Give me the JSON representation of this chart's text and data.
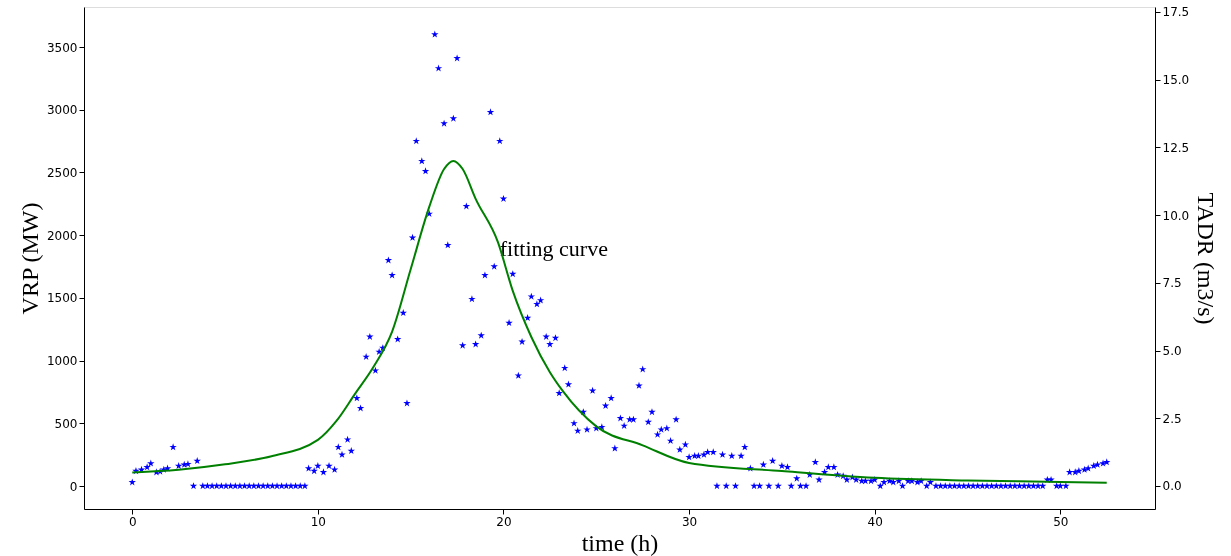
{
  "chart_data": {
    "type": "scatter",
    "xlabel": "time (h)",
    "ylabel": "VRP (MW)",
    "y2label": "TADR (m3/s)",
    "xlim": [
      -2.6,
      55.1
    ],
    "xticks": [
      0,
      10,
      20,
      30,
      40,
      50
    ],
    "ylim": [
      -183,
      3819
    ],
    "yticks": [
      0,
      500,
      1000,
      1500,
      2000,
      2500,
      3000,
      3500
    ],
    "y2lim": [
      -0.85,
      17.68
    ],
    "y2ticks": [
      {
        "value": 0,
        "label": "0.0"
      },
      2.5,
      {
        "value": 5,
        "label": "5.0"
      },
      7.5,
      {
        "value": 10,
        "label": "10.0"
      },
      12.5,
      {
        "value": 15,
        "label": "15.0"
      },
      17.5
    ],
    "grid": false,
    "marker": "star",
    "annotations": [
      {
        "text": "fitting curve",
        "x": 19.8,
        "y": 1890
      }
    ],
    "series": [
      {
        "color": "#0000ff",
        "x": [
          0,
          0.2,
          0.5,
          0.8,
          1.0,
          1.3,
          1.5,
          1.7,
          1.9,
          2.2,
          2.5,
          2.8,
          3.0,
          3.3,
          3.5,
          3.8,
          4.05,
          4.3,
          4.55,
          4.8,
          5.05,
          5.3,
          5.55,
          5.8,
          6.05,
          6.3,
          6.55,
          6.8,
          7.05,
          7.3,
          7.55,
          7.8,
          8.05,
          8.3,
          8.55,
          8.8,
          9.05,
          9.3,
          9.5,
          9.8,
          10.0,
          10.3,
          10.6,
          10.9,
          11.1,
          11.3,
          11.6,
          11.8,
          12.1,
          12.3,
          12.6,
          12.8,
          13.1,
          13.3,
          13.5,
          13.8,
          14.0,
          14.3,
          14.6,
          14.8,
          15.1,
          15.3,
          15.6,
          15.8,
          16.0,
          16.3,
          16.5,
          16.8,
          17.0,
          17.3,
          17.5,
          17.8,
          18.0,
          18.3,
          18.5,
          18.8,
          19.0,
          19.3,
          19.5,
          19.8,
          20.0,
          20.3,
          20.5,
          20.8,
          21.0,
          21.3,
          21.5,
          21.8,
          22.0,
          22.3,
          22.5,
          22.8,
          23.0,
          23.3,
          23.5,
          23.8,
          24.0,
          24.3,
          24.5,
          24.8,
          25.0,
          25.3,
          25.5,
          25.8,
          26.0,
          26.3,
          26.5,
          26.8,
          27.0,
          27.3,
          27.5,
          27.8,
          28.0,
          28.3,
          28.5,
          28.8,
          29.0,
          29.3,
          29.5,
          29.8,
          30.0,
          30.3,
          30.5,
          30.8,
          31.0,
          31.3,
          31.5,
          31.8,
          32.0,
          32.3,
          32.5,
          32.8,
          33.0,
          33.3,
          33.5,
          33.8,
          34.0,
          34.3,
          34.5,
          34.8,
          35.0,
          35.3,
          35.5,
          35.8,
          36.0,
          36.3,
          36.5,
          36.8,
          37.0,
          37.3,
          37.5,
          37.8,
          38.0,
          38.3,
          38.5,
          38.8,
          39.0,
          39.3,
          39.5,
          39.8,
          40.0,
          40.3,
          40.5,
          40.8,
          41.0,
          41.3,
          41.5,
          41.8,
          42.0,
          42.3,
          42.5,
          42.8,
          43.0,
          43.3,
          43.55,
          43.8,
          44.05,
          44.3,
          44.55,
          44.8,
          45.05,
          45.3,
          45.55,
          45.8,
          46.05,
          46.3,
          46.55,
          46.8,
          47.05,
          47.3,
          47.55,
          47.8,
          48.05,
          48.3,
          48.55,
          48.8,
          49.05,
          49.3,
          49.5,
          49.8,
          50.0,
          50.3,
          50.5,
          50.8,
          51.0,
          51.3,
          51.5,
          51.8,
          52.0,
          52.3,
          52.5
        ],
        "values": [
          30,
          120,
          130,
          150,
          180,
          110,
          115,
          130,
          140,
          310,
          160,
          170,
          175,
          0,
          200,
          0,
          0,
          0,
          0,
          0,
          0,
          0,
          0,
          0,
          0,
          0,
          0,
          0,
          0,
          0,
          0,
          0,
          0,
          0,
          0,
          0,
          0,
          0,
          140,
          120,
          160,
          110,
          160,
          130,
          310,
          250,
          370,
          280,
          700,
          620,
          1030,
          1190,
          920,
          1070,
          1100,
          1800,
          1680,
          1170,
          1380,
          660,
          1980,
          2750,
          2590,
          2510,
          2170,
          3600,
          3330,
          2890,
          1920,
          2930,
          3410,
          1120,
          2230,
          1490,
          1130,
          1200,
          1680,
          2980,
          1750,
          2750,
          2290,
          1300,
          1690,
          880,
          1150,
          1340,
          1510,
          1450,
          1480,
          1190,
          1130,
          1180,
          740,
          940,
          810,
          500,
          440,
          590,
          450,
          760,
          460,
          470,
          640,
          700,
          300,
          540,
          480,
          530,
          530,
          800,
          930,
          510,
          590,
          410,
          450,
          460,
          360,
          530,
          290,
          330,
          230,
          240,
          240,
          250,
          270,
          270,
          0,
          250,
          0,
          240,
          0,
          240,
          310,
          140,
          0,
          0,
          170,
          0,
          200,
          0,
          160,
          150,
          0,
          60,
          0,
          0,
          90,
          190,
          50,
          110,
          150,
          150,
          90,
          80,
          50,
          70,
          50,
          40,
          40,
          40,
          50,
          0,
          30,
          40,
          30,
          40,
          0,
          40,
          40,
          30,
          40,
          0,
          30,
          0,
          0,
          0,
          0,
          0,
          0,
          0,
          0,
          0,
          0,
          0,
          0,
          0,
          0,
          0,
          0,
          0,
          0,
          0,
          0,
          0,
          0,
          0,
          0,
          50,
          50,
          0,
          0,
          0,
          110,
          110,
          120,
          130,
          140,
          160,
          170,
          180,
          190
        ]
      },
      {
        "type": "line",
        "color": "#008000",
        "axis": "y2",
        "line_style": "solid",
        "marker": "none",
        "x": [
          0,
          2.5,
          5,
          7.5,
          10,
          11,
          12,
          13,
          14,
          15,
          16,
          16.8,
          17.3,
          17.8,
          18.5,
          19.7,
          20.5,
          21.5,
          22.5,
          23.2,
          25,
          27.5,
          30,
          35,
          40,
          45,
          50,
          52.5
        ],
        "values": [
          0.5,
          0.6,
          0.8,
          1.1,
          1.7,
          2.4,
          3.4,
          4.4,
          5.7,
          8.0,
          10.3,
          11.7,
          12.0,
          11.7,
          10.6,
          9.0,
          7.2,
          5.5,
          4.2,
          3.5,
          2.2,
          1.5,
          0.85,
          0.55,
          0.3,
          0.2,
          0.15,
          0.12
        ]
      }
    ]
  }
}
